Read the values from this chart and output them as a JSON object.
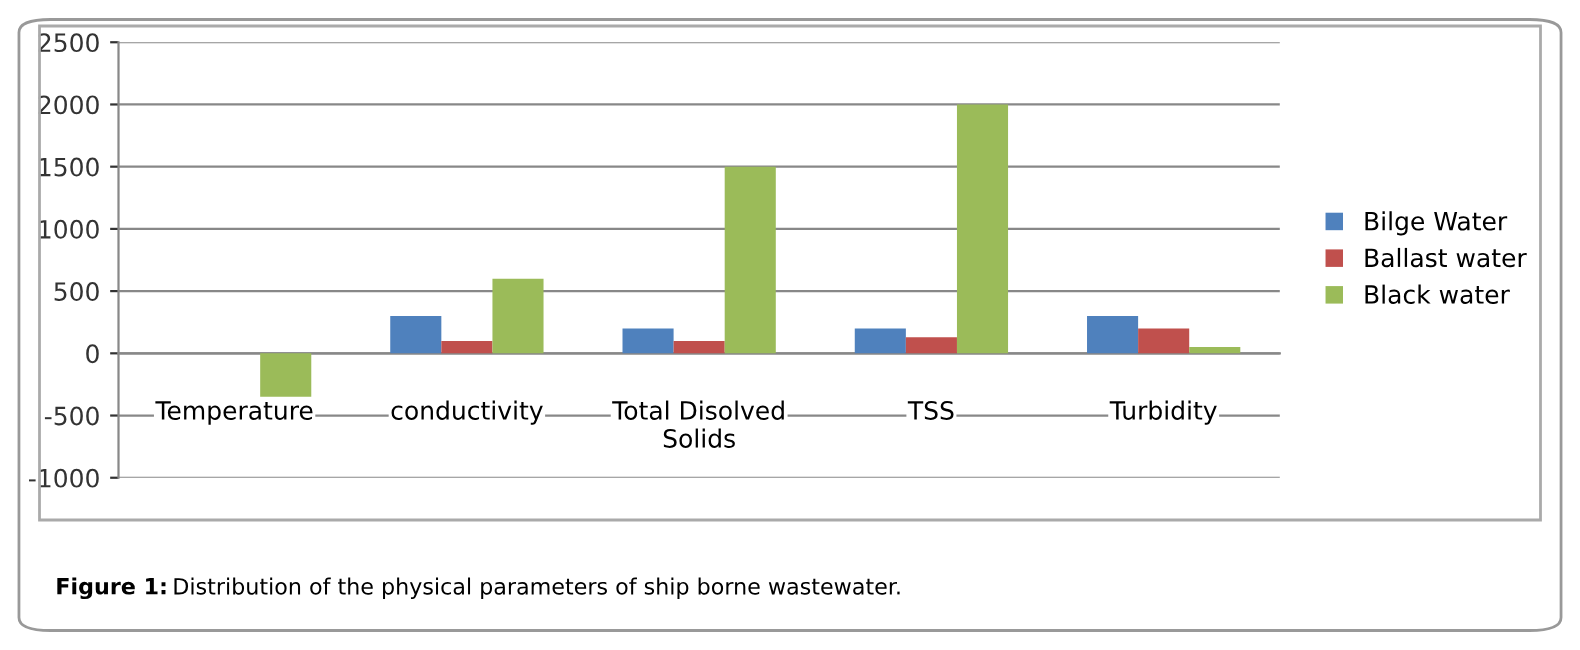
{
  "chart_data": {
    "type": "bar",
    "categories": [
      "Temperature",
      "conductivity",
      "Total Disolved\nSolids",
      "TSS",
      "Turbidity"
    ],
    "series": [
      {
        "name": "Bilge Water",
        "color": "#4f81bd",
        "values": [
          0,
          300,
          200,
          200,
          300
        ]
      },
      {
        "name": "Ballast water",
        "color": "#c0504d",
        "values": [
          0,
          100,
          100,
          130,
          200
        ]
      },
      {
        "name": "Black water",
        "color": "#9bbb59",
        "values": [
          -350,
          600,
          1500,
          2000,
          50
        ]
      }
    ],
    "ylim": [
      -1000,
      2500
    ],
    "yticks": [
      -1000,
      -500,
      0,
      500,
      1000,
      1500,
      2000,
      2500
    ],
    "grid": "y",
    "legend": "right",
    "annotations": [
      "Figure 1: Distribution of the physical parameters of ship borne wastewater."
    ]
  }
}
